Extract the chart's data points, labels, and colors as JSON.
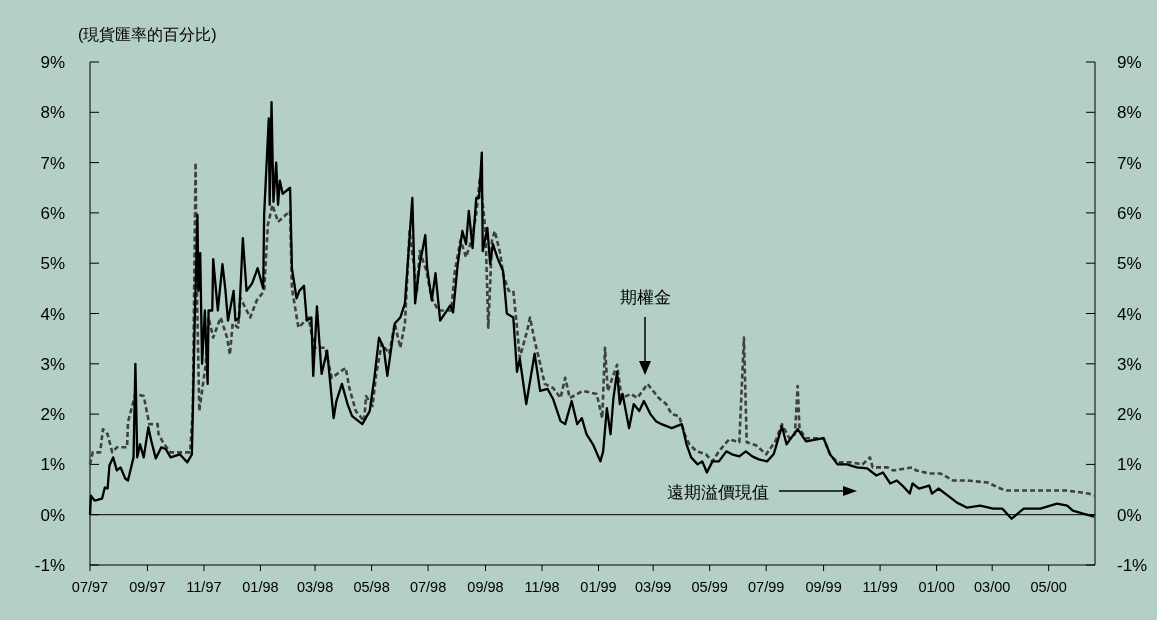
{
  "chart_data": {
    "type": "line",
    "annotations": [
      "(現貨匯率的百分比)"
    ],
    "xlim": [
      "1997-07-01",
      "2000-06-20"
    ],
    "xticks": [
      {
        "value": "1997-07-01",
        "label": "07/97"
      },
      {
        "value": "1997-09-01",
        "label": "09/97"
      },
      {
        "value": "1997-11-01",
        "label": "11/97"
      },
      {
        "value": "1998-01-01",
        "label": "01/98"
      },
      {
        "value": "1998-03-01",
        "label": "03/98"
      },
      {
        "value": "1998-05-01",
        "label": "05/98"
      },
      {
        "value": "1998-07-01",
        "label": "07/98"
      },
      {
        "value": "1998-09-01",
        "label": "09/98"
      },
      {
        "value": "1998-11-01",
        "label": "11/98"
      },
      {
        "value": "1999-01-01",
        "label": "01/99"
      },
      {
        "value": "1999-03-01",
        "label": "03/99"
      },
      {
        "value": "1999-05-01",
        "label": "05/99"
      },
      {
        "value": "1999-07-01",
        "label": "07/99"
      },
      {
        "value": "1999-09-01",
        "label": "09/99"
      },
      {
        "value": "1999-11-01",
        "label": "11/99"
      },
      {
        "value": "2000-01-01",
        "label": "01/00"
      },
      {
        "value": "2000-03-01",
        "label": "03/00"
      },
      {
        "value": "2000-05-01",
        "label": "05/00"
      }
    ],
    "ylim": [
      -1,
      9
    ],
    "yticks": [
      {
        "value": -1,
        "label": "-1%"
      },
      {
        "value": 0,
        "label": "0%"
      },
      {
        "value": 1,
        "label": "1%"
      },
      {
        "value": 2,
        "label": "2%"
      },
      {
        "value": 3,
        "label": "3%"
      },
      {
        "value": 4,
        "label": "4%"
      },
      {
        "value": 5,
        "label": "5%"
      },
      {
        "value": 6,
        "label": "6%"
      },
      {
        "value": 7,
        "label": "7%"
      },
      {
        "value": 8,
        "label": "8%"
      },
      {
        "value": 9,
        "label": "9%"
      }
    ],
    "y2lim": [
      -1,
      9
    ],
    "y2ticks": [
      {
        "value": -1,
        "label": "-1%"
      },
      {
        "value": 0,
        "label": "0%"
      },
      {
        "value": 1,
        "label": "1%"
      },
      {
        "value": 2,
        "label": "2%"
      },
      {
        "value": 3,
        "label": "3%"
      },
      {
        "value": 4,
        "label": "4%"
      },
      {
        "value": 5,
        "label": "5%"
      },
      {
        "value": 6,
        "label": "6%"
      },
      {
        "value": 7,
        "label": "7%"
      },
      {
        "value": 8,
        "label": "8%"
      },
      {
        "value": 9,
        "label": "9%"
      }
    ],
    "ref_lines": [
      {
        "axis": "y",
        "value": 0,
        "color": "#000000"
      }
    ],
    "series": [
      {
        "name": "期權金",
        "color": "#404040",
        "line_style": "dashed",
        "x": [
          "1997-07-01",
          "1997-07-04",
          "1997-07-12",
          "1997-07-15",
          "1997-07-20",
          "1997-07-25",
          "1997-07-30",
          "1997-08-10",
          "1997-08-11",
          "1997-08-19",
          "1997-08-28",
          "1997-09-03",
          "1997-09-12",
          "1997-09-13",
          "1997-09-19",
          "1997-09-26",
          "1997-10-17",
          "1997-10-20",
          "1997-10-23",
          "1997-10-24",
          "1997-10-27",
          "1997-11-03",
          "1997-11-06",
          "1997-11-11",
          "1997-11-19",
          "1997-11-26",
          "1997-11-29",
          "1997-12-02",
          "1997-12-08",
          "1997-12-10",
          "1997-12-21",
          "1997-12-28",
          "1998-01-05",
          "1998-01-09",
          "1998-01-14",
          "1998-01-20",
          "1998-02-02",
          "1998-02-04",
          "1998-02-11",
          "1998-02-22",
          "1998-02-28",
          "1998-03-12",
          "1998-03-19",
          "1998-04-03",
          "1998-04-07",
          "1998-04-14",
          "1998-04-23",
          "1998-04-25",
          "1998-05-02",
          "1998-05-06",
          "1998-05-12",
          "1998-05-20",
          "1998-05-26",
          "1998-06-01",
          "1998-06-06",
          "1998-06-11",
          "1998-06-19",
          "1998-06-22",
          "1998-06-29",
          "1998-07-05",
          "1998-07-12",
          "1998-07-26",
          "1998-07-30",
          "1998-08-05",
          "1998-08-11",
          "1998-08-17",
          "1998-08-22",
          "1998-08-26",
          "1998-09-01",
          "1998-09-04",
          "1998-09-08",
          "1998-09-11",
          "1998-09-17",
          "1998-09-20",
          "1998-09-26",
          "1998-10-01",
          "1998-10-05",
          "1998-10-08",
          "1998-10-16",
          "1998-10-19",
          "1998-10-24",
          "1998-10-30",
          "1998-11-04",
          "1998-11-13",
          "1998-11-21",
          "1998-11-26",
          "1998-12-01",
          "1998-12-15",
          "1998-12-30",
          "1999-01-05",
          "1999-01-08",
          "1999-01-11",
          "1999-01-21",
          "1999-01-26",
          "1999-02-05",
          "1999-02-12",
          "1999-02-23",
          "1999-03-01",
          "1999-03-07",
          "1999-03-15",
          "1999-03-21",
          "1999-03-29",
          "1999-04-04",
          "1999-04-09",
          "1999-04-17",
          "1999-04-27",
          "1999-05-04",
          "1999-05-11",
          "1999-05-22",
          "1999-06-02",
          "1999-06-07",
          "1999-06-10",
          "1999-06-20",
          "1999-07-01",
          "1999-07-11",
          "1999-07-18",
          "1999-07-26",
          "1999-08-01",
          "1999-08-04",
          "1999-08-06",
          "1999-08-13",
          "1999-09-01",
          "1999-09-08",
          "1999-09-16",
          "1999-09-30",
          "1999-10-13",
          "1999-10-21",
          "1999-10-24",
          "1999-11-09",
          "1999-11-15",
          "1999-12-06",
          "1999-12-10",
          "1999-12-24",
          "2000-01-05",
          "2000-01-19",
          "2000-02-03",
          "2000-02-25",
          "2000-03-10",
          "2000-03-17",
          "2000-04-14",
          "2000-05-21",
          "2000-06-13",
          "2000-06-19"
        ],
        "values": [
          1.0,
          1.24,
          1.24,
          1.7,
          1.6,
          1.24,
          1.34,
          1.34,
          1.84,
          2.4,
          2.36,
          1.8,
          1.8,
          1.6,
          1.4,
          1.24,
          1.24,
          2.06,
          7.0,
          4.86,
          2.06,
          3.0,
          3.92,
          3.52,
          3.92,
          3.52,
          3.18,
          3.8,
          3.72,
          4.32,
          3.92,
          4.26,
          4.45,
          5.76,
          6.16,
          5.82,
          6.04,
          4.5,
          3.72,
          3.92,
          3.32,
          3.32,
          2.72,
          2.92,
          2.52,
          2.06,
          1.86,
          2.36,
          2.16,
          2.8,
          3.4,
          3.2,
          3.8,
          3.32,
          3.8,
          5.64,
          4.45,
          5.24,
          4.86,
          4.3,
          4.06,
          4.06,
          4.86,
          5.46,
          5.12,
          5.46,
          5.98,
          6.7,
          5.64,
          3.72,
          5.46,
          5.64,
          5.18,
          4.78,
          4.45,
          4.45,
          3.72,
          3.12,
          3.66,
          3.92,
          3.46,
          3.0,
          2.6,
          2.52,
          2.32,
          2.72,
          2.32,
          2.46,
          2.4,
          1.92,
          3.32,
          2.46,
          2.98,
          2.32,
          2.4,
          2.32,
          2.6,
          2.46,
          2.32,
          2.2,
          2.0,
          1.96,
          1.6,
          1.4,
          1.26,
          1.2,
          1.06,
          1.26,
          1.5,
          1.44,
          3.52,
          1.44,
          1.38,
          1.2,
          1.46,
          1.8,
          1.52,
          1.6,
          2.56,
          1.7,
          1.52,
          1.52,
          1.2,
          1.04,
          1.04,
          1.0,
          1.14,
          0.94,
          0.94,
          0.88,
          0.94,
          0.88,
          0.82,
          0.82,
          0.68,
          0.68,
          0.64,
          0.52,
          0.48,
          0.48,
          0.48,
          0.42,
          0.38
        ]
      },
      {
        "name": "遠期溢價現值",
        "color": "#000000",
        "line_style": "solid",
        "x": [
          "1997-07-01",
          "1997-07-02",
          "1997-07-06",
          "1997-07-14",
          "1997-07-17",
          "1997-07-20",
          "1997-07-22",
          "1997-07-26",
          "1997-07-30",
          "1997-08-03",
          "1997-08-08",
          "1997-08-11",
          "1997-08-17",
          "1997-08-19",
          "1997-08-21",
          "1997-08-24",
          "1997-08-28",
          "1997-09-02",
          "1997-09-05",
          "1997-09-10",
          "1997-09-16",
          "1997-09-21",
          "1997-09-26",
          "1997-10-06",
          "1997-10-14",
          "1997-10-19",
          "1997-10-22",
          "1997-10-25",
          "1997-10-26",
          "1997-10-28",
          "1997-10-30",
          "1997-11-02",
          "1997-11-05",
          "1997-11-06",
          "1997-11-10",
          "1997-11-11",
          "1997-11-16",
          "1997-11-21",
          "1997-11-24",
          "1997-11-27",
          "1997-12-03",
          "1997-12-05",
          "1997-12-09",
          "1997-12-13",
          "1997-12-17",
          "1997-12-23",
          "1997-12-29",
          "1998-01-04",
          "1998-01-05",
          "1998-01-10",
          "1998-01-11",
          "1998-01-13",
          "1998-01-15",
          "1998-01-18",
          "1998-01-20",
          "1998-01-22",
          "1998-01-25",
          "1998-02-02",
          "1998-02-04",
          "1998-02-09",
          "1998-02-12",
          "1998-02-17",
          "1998-02-20",
          "1998-02-25",
          "1998-02-27",
          "1998-03-03",
          "1998-03-08",
          "1998-03-14",
          "1998-03-21",
          "1998-03-24",
          "1998-03-30",
          "1998-04-05",
          "1998-04-10",
          "1998-04-21",
          "1998-04-29",
          "1998-05-04",
          "1998-05-09",
          "1998-05-14",
          "1998-05-18",
          "1998-05-26",
          "1998-06-01",
          "1998-06-06",
          "1998-06-14",
          "1998-06-17",
          "1998-06-22",
          "1998-06-28",
          "1998-06-30",
          "1998-07-05",
          "1998-07-09",
          "1998-07-14",
          "1998-07-25",
          "1998-07-28",
          "1998-08-02",
          "1998-08-07",
          "1998-08-11",
          "1998-08-14",
          "1998-08-18",
          "1998-08-22",
          "1998-08-25",
          "1998-08-28",
          "1998-08-29",
          "1998-09-03",
          "1998-09-06",
          "1998-09-09",
          "1998-09-14",
          "1998-09-20",
          "1998-09-24",
          "1998-10-01",
          "1998-10-05",
          "1998-10-08",
          "1998-10-15",
          "1998-10-24",
          "1998-10-30",
          "1998-11-07",
          "1998-11-13",
          "1998-11-21",
          "1998-11-26",
          "1998-12-03",
          "1998-12-09",
          "1998-12-14",
          "1998-12-19",
          "1998-12-26",
          "1999-01-03",
          "1999-01-06",
          "1999-01-10",
          "1999-01-14",
          "1999-01-17",
          "1999-01-21",
          "1999-01-24",
          "1999-01-27",
          "1999-02-03",
          "1999-02-08",
          "1999-02-14",
          "1999-02-19",
          "1999-02-26",
          "1999-03-04",
          "1999-03-10",
          "1999-03-21",
          "1999-04-01",
          "1999-04-06",
          "1999-04-11",
          "1999-04-18",
          "1999-04-23",
          "1999-04-28",
          "1999-05-04",
          "1999-05-11",
          "1999-05-19",
          "1999-05-25",
          "1999-06-02",
          "1999-06-09",
          "1999-06-16",
          "1999-06-23",
          "1999-07-02",
          "1999-07-09",
          "1999-07-11",
          "1999-07-18",
          "1999-07-23",
          "1999-08-04",
          "1999-08-13",
          "1999-09-01",
          "1999-09-08",
          "1999-09-16",
          "1999-09-26",
          "1999-10-07",
          "1999-10-18",
          "1999-10-28",
          "1999-11-04",
          "1999-11-12",
          "1999-11-19",
          "1999-11-25",
          "1999-12-03",
          "1999-12-06",
          "1999-12-13",
          "1999-12-24",
          "1999-12-27",
          "2000-01-03",
          "2000-01-16",
          "2000-01-23",
          "2000-02-03",
          "2000-02-17",
          "2000-03-02",
          "2000-03-12",
          "2000-03-22",
          "2000-04-04",
          "2000-04-22",
          "2000-05-10",
          "2000-05-21",
          "2000-05-27",
          "2000-06-07",
          "2000-06-19"
        ],
        "values": [
          0.0,
          0.38,
          0.28,
          0.32,
          0.54,
          0.52,
          0.98,
          1.14,
          0.88,
          0.94,
          0.72,
          0.68,
          1.14,
          3.0,
          1.14,
          1.4,
          1.14,
          1.74,
          1.48,
          1.12,
          1.34,
          1.3,
          1.14,
          1.2,
          1.04,
          1.2,
          3.8,
          5.96,
          4.45,
          5.2,
          3.0,
          4.06,
          2.6,
          4.06,
          4.06,
          5.08,
          4.06,
          4.98,
          4.5,
          3.86,
          4.45,
          3.86,
          3.92,
          5.5,
          4.45,
          4.6,
          4.9,
          4.5,
          5.96,
          7.88,
          6.16,
          8.2,
          6.22,
          7.0,
          6.16,
          6.64,
          6.38,
          6.5,
          4.9,
          4.3,
          4.45,
          4.55,
          3.86,
          3.92,
          2.76,
          4.14,
          2.8,
          3.26,
          1.92,
          2.26,
          2.6,
          2.2,
          1.96,
          1.8,
          2.06,
          2.72,
          3.52,
          3.32,
          2.76,
          3.8,
          3.92,
          4.2,
          6.3,
          4.2,
          4.98,
          5.56,
          4.9,
          4.26,
          4.8,
          3.86,
          4.16,
          4.02,
          4.98,
          5.64,
          5.38,
          6.04,
          5.3,
          6.3,
          6.3,
          7.2,
          5.24,
          5.7,
          4.98,
          5.38,
          5.1,
          4.84,
          4.0,
          3.92,
          2.84,
          3.1,
          2.2,
          3.2,
          2.46,
          2.5,
          2.3,
          1.86,
          1.8,
          2.26,
          1.8,
          1.92,
          1.6,
          1.4,
          1.06,
          1.26,
          2.12,
          1.6,
          2.3,
          2.84,
          2.2,
          2.4,
          1.72,
          2.2,
          2.06,
          2.26,
          2.0,
          1.86,
          1.8,
          1.72,
          1.8,
          1.4,
          1.14,
          1.0,
          1.06,
          0.84,
          1.06,
          1.06,
          1.26,
          1.2,
          1.16,
          1.26,
          1.16,
          1.1,
          1.06,
          1.2,
          1.32,
          1.76,
          1.4,
          1.7,
          1.46,
          1.52,
          1.2,
          1.0,
          1.0,
          0.94,
          0.92,
          0.78,
          0.84,
          0.62,
          0.68,
          0.58,
          0.42,
          0.62,
          0.52,
          0.58,
          0.42,
          0.52,
          0.34,
          0.24,
          0.14,
          0.18,
          0.12,
          0.12,
          -0.08,
          0.12,
          0.12,
          0.22,
          0.18,
          0.08,
          0.02,
          -0.04
        ]
      }
    ]
  }
}
